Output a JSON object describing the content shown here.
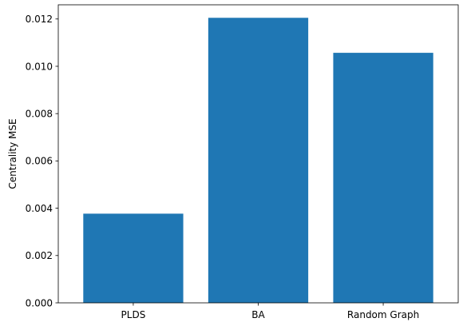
{
  "chart_data": {
    "type": "bar",
    "categories": [
      "PLDS",
      "BA",
      "Random Graph"
    ],
    "values": [
      0.00377,
      0.01205,
      0.01057
    ],
    "title": "",
    "xlabel": "",
    "ylabel": "Centrality MSE",
    "ylim": [
      0,
      0.0126
    ],
    "yticks": [
      "0.000",
      "0.002",
      "0.004",
      "0.006",
      "0.008",
      "0.010",
      "0.012"
    ],
    "ytick_values": [
      0,
      0.002,
      0.004,
      0.006,
      0.008,
      0.01,
      0.012
    ],
    "bar_color": "#1f77b4",
    "grid": false,
    "legend": "none"
  }
}
